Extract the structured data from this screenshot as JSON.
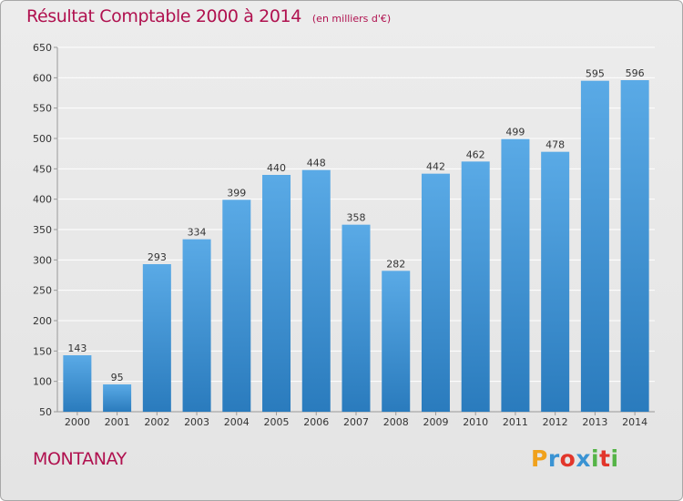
{
  "chart_data": {
    "type": "bar",
    "title": "Résultat Comptable 2000 à 2014",
    "subtitle": "(en milliers d'€)",
    "categories": [
      "2000",
      "2001",
      "2002",
      "2003",
      "2004",
      "2005",
      "2006",
      "2007",
      "2008",
      "2009",
      "2010",
      "2011",
      "2012",
      "2013",
      "2014"
    ],
    "values": [
      143,
      95,
      293,
      334,
      399,
      440,
      448,
      358,
      282,
      442,
      462,
      499,
      478,
      595,
      596
    ],
    "ylim": [
      50,
      650
    ],
    "yticks": [
      50,
      100,
      150,
      200,
      250,
      300,
      350,
      400,
      450,
      500,
      550,
      600,
      650
    ],
    "xlabel": "",
    "ylabel": "",
    "grid": true
  },
  "place_name": "MONTANAY",
  "logo": {
    "letters": [
      "P",
      "r",
      "o",
      "x",
      "i",
      "t",
      "i"
    ],
    "colors": [
      "#f0a11c",
      "#3a93d3",
      "#e2362b",
      "#3a93d3",
      "#55b447",
      "#e2362b",
      "#55b447"
    ]
  },
  "colors": {
    "accent": "#b0114f",
    "bar_top": "#5aaae6",
    "bar_bottom": "#2a7bbd"
  }
}
